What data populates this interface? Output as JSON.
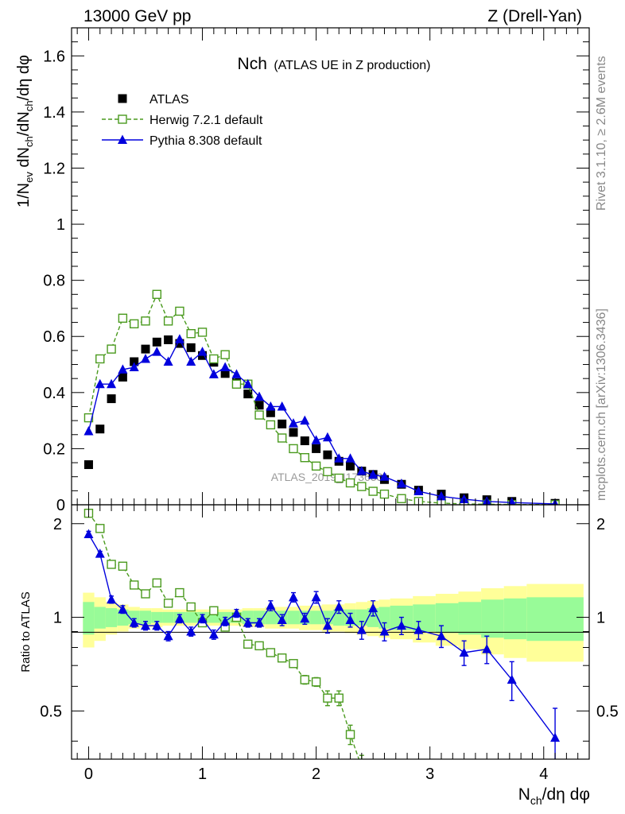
{
  "header": {
    "left": "13000 GeV pp",
    "right": "Z (Drell-Yan)"
  },
  "side_text": {
    "rivet": "Rivet 3.1.10, ≥ 2.6M events",
    "mcplots": "mcplots.cern.ch [arXiv:1306.3436]"
  },
  "watermark": "ATLAS_2019_I1736531",
  "colors": {
    "atlas": "#000000",
    "herwig": "#4a9a1e",
    "pythia": "#0000dd",
    "band_inner": "#98fb98",
    "band_outer": "#ffff99"
  },
  "chart_data": [
    {
      "type": "scatter",
      "title": "Nch",
      "subtitle": "(ATLAS UE in Z production)",
      "xlabel": "N_ch/dη dφ",
      "ylabel": "1/N_ev dN_ch/dN_ch/dη dφ",
      "xlim": [
        -0.15,
        4.4
      ],
      "ylim": [
        0,
        1.7
      ],
      "yticks": [
        "0",
        "0.2",
        "0.4",
        "0.6",
        "0.8",
        "1",
        "1.2",
        "1.4",
        "1.6"
      ],
      "legend_position": "top-left",
      "series": [
        {
          "name": "ATLAS",
          "marker": "filled-square",
          "x": [
            0,
            0.1,
            0.2,
            0.3,
            0.4,
            0.5,
            0.6,
            0.7,
            0.8,
            0.9,
            1.0,
            1.1,
            1.2,
            1.3,
            1.4,
            1.5,
            1.6,
            1.7,
            1.8,
            1.9,
            2.0,
            2.1,
            2.2,
            2.3,
            2.4,
            2.5,
            2.6,
            2.75,
            2.9,
            3.1,
            3.3,
            3.5,
            3.72,
            4.1
          ],
          "y": [
            0.143,
            0.27,
            0.378,
            0.455,
            0.51,
            0.555,
            0.58,
            0.588,
            0.575,
            0.56,
            0.532,
            0.508,
            0.468,
            0.435,
            0.395,
            0.355,
            0.328,
            0.288,
            0.258,
            0.228,
            0.2,
            0.178,
            0.155,
            0.138,
            0.12,
            0.108,
            0.09,
            0.073,
            0.052,
            0.038,
            0.025,
            0.018,
            0.012,
            0.005
          ]
        },
        {
          "name": "Herwig 7.2.1 default",
          "marker": "open-square",
          "x": [
            0,
            0.1,
            0.2,
            0.3,
            0.4,
            0.5,
            0.6,
            0.7,
            0.8,
            0.9,
            1.0,
            1.1,
            1.2,
            1.3,
            1.4,
            1.5,
            1.6,
            1.7,
            1.8,
            1.9,
            2.0,
            2.1,
            2.2,
            2.3,
            2.4,
            2.5,
            2.6,
            2.75,
            2.9,
            3.1,
            3.3,
            3.5,
            3.72,
            4.1
          ],
          "y": [
            0.31,
            0.52,
            0.555,
            0.665,
            0.645,
            0.655,
            0.75,
            0.655,
            0.69,
            0.61,
            0.615,
            0.52,
            0.535,
            0.43,
            0.43,
            0.32,
            0.285,
            0.238,
            0.2,
            0.168,
            0.138,
            0.118,
            0.095,
            0.078,
            0.065,
            0.048,
            0.038,
            0.022,
            0.012,
            0.006,
            0.003,
            0.002,
            0.001,
            0.0005
          ]
        },
        {
          "name": "Pythia 8.308 default",
          "marker": "filled-triangle",
          "x": [
            0,
            0.1,
            0.2,
            0.3,
            0.4,
            0.5,
            0.6,
            0.7,
            0.8,
            0.9,
            1.0,
            1.1,
            1.2,
            1.3,
            1.4,
            1.5,
            1.6,
            1.7,
            1.8,
            1.9,
            2.0,
            2.1,
            2.2,
            2.3,
            2.4,
            2.5,
            2.6,
            2.75,
            2.9,
            3.1,
            3.3,
            3.5,
            3.72,
            4.1
          ],
          "y": [
            0.262,
            0.43,
            0.43,
            0.482,
            0.49,
            0.52,
            0.545,
            0.51,
            0.59,
            0.51,
            0.545,
            0.465,
            0.49,
            0.465,
            0.43,
            0.385,
            0.35,
            0.35,
            0.29,
            0.3,
            0.23,
            0.24,
            0.165,
            0.165,
            0.12,
            0.107,
            0.1,
            0.075,
            0.048,
            0.03,
            0.02,
            0.012,
            0.008,
            0.003
          ]
        }
      ]
    },
    {
      "type": "scatter",
      "title": "",
      "xlabel": "N_ch/dη dφ",
      "ylabel": "Ratio to ATLAS",
      "xlim": [
        -0.15,
        4.4
      ],
      "ylim": [
        0.35,
        2.3
      ],
      "xticks": [
        "0",
        "1",
        "2",
        "3",
        "4"
      ],
      "yticks": [
        "0.5",
        "1",
        "2"
      ],
      "reference_line": 1,
      "uncertainty_bands": {
        "edges": [
          -0.05,
          0.05,
          0.15,
          0.25,
          0.35,
          0.45,
          0.55,
          0.65,
          0.75,
          0.85,
          0.95,
          1.05,
          1.15,
          1.25,
          1.35,
          1.45,
          1.55,
          1.65,
          1.75,
          1.85,
          1.95,
          2.05,
          2.15,
          2.25,
          2.35,
          2.45,
          2.55,
          2.65,
          2.85,
          3.05,
          3.25,
          3.45,
          3.65,
          3.85,
          4.35
        ],
        "inner": [
          0.12,
          0.08,
          0.07,
          0.06,
          0.05,
          0.05,
          0.04,
          0.04,
          0.04,
          0.04,
          0.04,
          0.04,
          0.04,
          0.04,
          0.05,
          0.05,
          0.05,
          0.05,
          0.05,
          0.05,
          0.05,
          0.05,
          0.06,
          0.06,
          0.06,
          0.07,
          0.08,
          0.09,
          0.1,
          0.11,
          0.12,
          0.14,
          0.15,
          0.16
        ],
        "outer": [
          0.2,
          0.16,
          0.12,
          0.1,
          0.08,
          0.07,
          0.07,
          0.06,
          0.06,
          0.06,
          0.06,
          0.06,
          0.06,
          0.06,
          0.07,
          0.07,
          0.08,
          0.08,
          0.08,
          0.09,
          0.09,
          0.1,
          0.1,
          0.11,
          0.12,
          0.13,
          0.14,
          0.15,
          0.17,
          0.19,
          0.21,
          0.24,
          0.26,
          0.28
        ]
      },
      "series": [
        {
          "name": "Herwig 7.2.1 default",
          "marker": "open-square",
          "x": [
            0,
            0.1,
            0.2,
            0.3,
            0.4,
            0.5,
            0.6,
            0.7,
            0.8,
            0.9,
            1.0,
            1.1,
            1.2,
            1.3,
            1.4,
            1.5,
            1.6,
            1.7,
            1.8,
            1.9,
            2.0,
            2.1,
            2.2,
            2.3,
            2.4
          ],
          "y": [
            2.16,
            1.93,
            1.48,
            1.46,
            1.27,
            1.19,
            1.29,
            1.11,
            1.2,
            1.08,
            0.96,
            1.05,
            0.93,
            1.0,
            0.82,
            0.81,
            0.77,
            0.74,
            0.71,
            0.63,
            0.62,
            0.55,
            0.55,
            0.42,
            0.33
          ],
          "yerr": [
            0.02,
            0.02,
            0.02,
            0.02,
            0.02,
            0.02,
            0.02,
            0.02,
            0.02,
            0.02,
            0.02,
            0.02,
            0.02,
            0.02,
            0.02,
            0.02,
            0.02,
            0.02,
            0.02,
            0.02,
            0.02,
            0.03,
            0.03,
            0.03,
            0.03
          ]
        },
        {
          "name": "Pythia 8.308 default",
          "marker": "filled-triangle",
          "x": [
            0,
            0.1,
            0.2,
            0.3,
            0.4,
            0.5,
            0.6,
            0.7,
            0.8,
            0.9,
            1.0,
            1.1,
            1.2,
            1.3,
            1.4,
            1.5,
            1.6,
            1.7,
            1.8,
            1.9,
            2.0,
            2.1,
            2.2,
            2.3,
            2.4,
            2.5,
            2.6,
            2.75,
            2.9,
            3.1,
            3.3,
            3.5,
            3.72,
            4.1
          ],
          "y": [
            1.85,
            1.6,
            1.14,
            1.06,
            0.96,
            0.94,
            0.94,
            0.87,
            0.99,
            0.9,
            0.99,
            0.88,
            0.97,
            1.03,
            0.96,
            0.96,
            1.09,
            0.98,
            1.16,
            0.99,
            1.16,
            0.94,
            1.08,
            0.98,
            0.91,
            1.07,
            0.9,
            0.94,
            0.91,
            0.87,
            0.77,
            0.79,
            0.63,
            0.41
          ],
          "yerr": [
            0.04,
            0.03,
            0.03,
            0.03,
            0.03,
            0.03,
            0.03,
            0.03,
            0.03,
            0.03,
            0.03,
            0.03,
            0.03,
            0.03,
            0.03,
            0.03,
            0.04,
            0.04,
            0.04,
            0.04,
            0.05,
            0.05,
            0.05,
            0.05,
            0.06,
            0.06,
            0.06,
            0.06,
            0.06,
            0.07,
            0.07,
            0.08,
            0.09,
            0.1
          ]
        }
      ]
    }
  ]
}
